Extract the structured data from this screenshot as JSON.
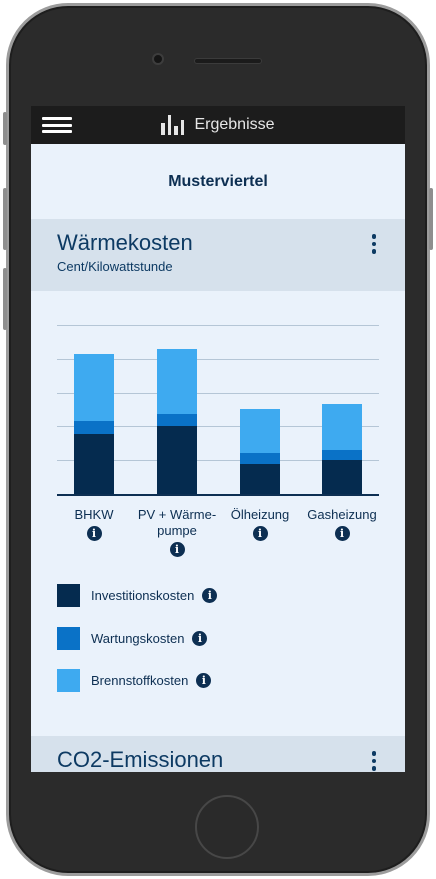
{
  "appbar": {
    "menu_icon": "hamburger-icon",
    "title_icon": "bar-chart-icon",
    "title": "Ergebnisse"
  },
  "page": {
    "title": "Musterviertel"
  },
  "sections": [
    {
      "title": "Wärmekosten",
      "subtitle": "Cent/Kilowattstunde",
      "menu_icon": "more-vertical-icon"
    },
    {
      "title": "CO2-Emissionen",
      "menu_icon": "more-vertical-icon"
    }
  ],
  "chart_data": {
    "type": "bar",
    "stacked": true,
    "categories": [
      "BHKW",
      "PV + Wärme-\npumpe",
      "Ölheizung",
      "Gasheizung"
    ],
    "series": [
      {
        "name": "Investitionskosten",
        "color": "#052b4f",
        "values": [
          3.55,
          4.0,
          1.8,
          2.0
        ]
      },
      {
        "name": "Wartungskosten",
        "color": "#0a72c7",
        "values": [
          0.75,
          0.75,
          0.65,
          0.6
        ]
      },
      {
        "name": "Brennstoffkosten",
        "color": "#3eaaf0",
        "values": [
          4.0,
          3.85,
          2.6,
          2.7
        ]
      }
    ],
    "ylim": [
      0,
      10
    ],
    "grid": true,
    "info_icon": "info-icon",
    "legend_position": "bottom"
  }
}
